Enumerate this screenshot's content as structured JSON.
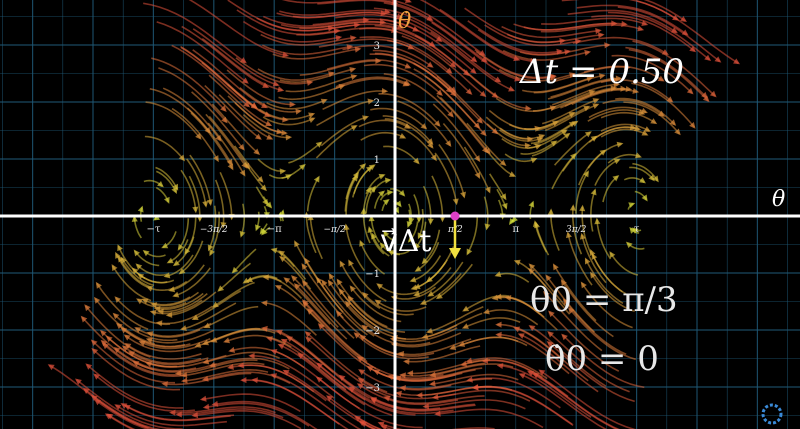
{
  "axes": {
    "x_label": "θ",
    "y_label": "θ̇",
    "x_ticks": [
      "−τ",
      "−3π/2",
      "−π",
      "−π/2",
      "π/2",
      "π",
      "3π/2",
      "τ"
    ],
    "y_ticks": [
      "3",
      "2",
      "1",
      "−1",
      "−2",
      "−3"
    ]
  },
  "overlay": {
    "dt_text": "Δt = 0.50",
    "v_dt_text": "v⃗Δt",
    "theta0_text": "θ0 = π/3",
    "theta0_value": "π/3",
    "thetadot0_text": "θ̇0 = 0",
    "thetadot0_value": "0"
  },
  "colors": {
    "background": "#000000",
    "grid": "#1f5a78",
    "axis": "#ffffff",
    "theta0": "#5fb8d8",
    "thetadot0": "#f0e04a",
    "state_point": "#e040c8",
    "velocity_arrow": "#f0e040",
    "slow_arrows": "#d8e83a",
    "fast_arrows": "#e0503a"
  },
  "diagram": {
    "type": "phase-space vector field",
    "system": "pendulum",
    "state": {
      "theta": "π/3",
      "theta_dot": 0
    }
  }
}
